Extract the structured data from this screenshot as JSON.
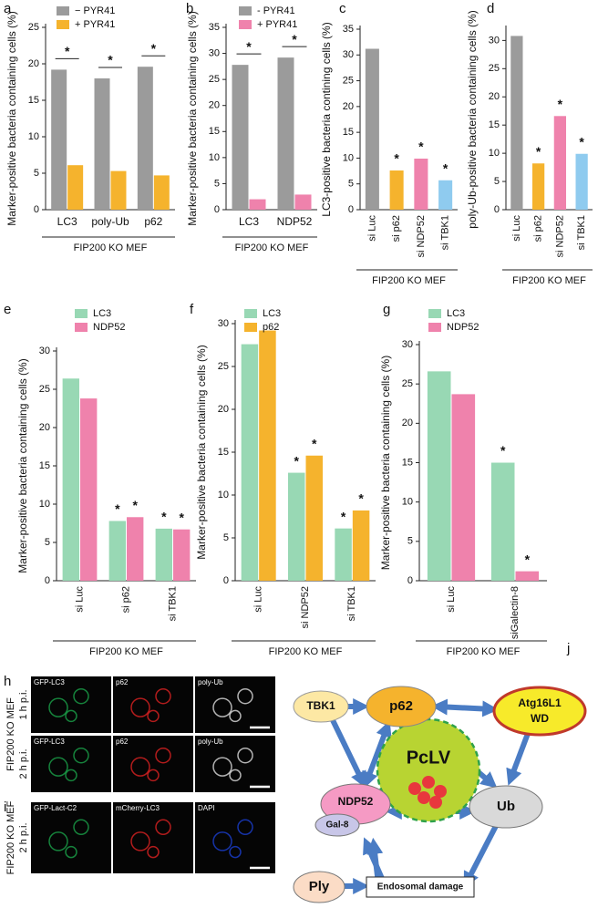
{
  "chart_data": [
    {
      "type": "bar",
      "letter": "a",
      "ylabel": "Marker-positive bacteria containing cells (%)",
      "categories": [
        "LC3",
        "poly-Ub",
        "p62"
      ],
      "series": [
        {
          "name": "− PYR41",
          "color": "#9b9b9b",
          "values": [
            19.2,
            18.0,
            19.6
          ]
        },
        {
          "name": "+ PYR41",
          "color": "#f5b32d",
          "values": [
            6.1,
            5.3,
            4.7
          ]
        }
      ],
      "comparisons": [
        "*",
        "*",
        "*"
      ],
      "ylim": [
        0,
        25
      ],
      "yticks": [
        0,
        5,
        10,
        15,
        20,
        25
      ],
      "group_label": "FIP200 KO MEF"
    },
    {
      "type": "bar",
      "letter": "b",
      "ylabel": "Marker-positive bacteria containing cells (%)",
      "categories": [
        "LC3",
        "NDP52"
      ],
      "series": [
        {
          "name": "- PYR41",
          "color": "#9b9b9b",
          "values": [
            27.8,
            29.2
          ]
        },
        {
          "name": "+ PYR41",
          "color": "#ef82ac",
          "values": [
            2.0,
            2.9
          ]
        }
      ],
      "comparisons": [
        "*",
        "*"
      ],
      "ylim": [
        0,
        35
      ],
      "yticks": [
        0,
        5,
        10,
        15,
        20,
        25,
        30,
        35
      ],
      "group_label": "FIP200 KO MEF"
    },
    {
      "type": "bar",
      "letter": "c",
      "ylabel": "LC3-positive bacteria contining cells (%)",
      "categories": [
        "si Luc",
        "si p62",
        "si NDP52",
        "si TBK1"
      ],
      "values": [
        31.2,
        7.6,
        9.9,
        5.7
      ],
      "colors": [
        "#9b9b9b",
        "#f5b32d",
        "#ef82ac",
        "#8fcbef"
      ],
      "stars": [
        null,
        "*",
        "*",
        "*"
      ],
      "ylim": [
        0,
        35
      ],
      "yticks": [
        0,
        5,
        10,
        15,
        20,
        25,
        30,
        35
      ],
      "group_label": "FIP200 KO MEF"
    },
    {
      "type": "bar",
      "letter": "d",
      "ylabel": "poly-Ub-positive bacteria containing cells (%)",
      "categories": [
        "si Luc",
        "si p62",
        "si NDP52",
        "si TBK1"
      ],
      "values": [
        30.8,
        8.2,
        16.6,
        9.9
      ],
      "colors": [
        "#9b9b9b",
        "#f5b32d",
        "#ef82ac",
        "#8fcbef"
      ],
      "stars": [
        null,
        "*",
        "*",
        "*"
      ],
      "ylim": [
        0,
        32
      ],
      "yticks": [
        0,
        5,
        10,
        15,
        20,
        25,
        30
      ],
      "group_label": "FIP200 KO MEF"
    },
    {
      "type": "bar",
      "letter": "e",
      "ylabel": "Marker-positive bacteria containing cells (%)",
      "categories": [
        "si Luc",
        "si p62",
        "si TBK1"
      ],
      "series": [
        {
          "name": "LC3",
          "color": "#98d8b4",
          "values": [
            26.4,
            7.8,
            6.8
          ],
          "stars": [
            null,
            "*",
            "*"
          ]
        },
        {
          "name": "NDP52",
          "color": "#ef82ac",
          "values": [
            23.8,
            8.3,
            6.7
          ],
          "stars": [
            null,
            "*",
            "*"
          ]
        }
      ],
      "ylim": [
        0,
        30
      ],
      "yticks": [
        0,
        5,
        10,
        15,
        20,
        25,
        30
      ],
      "group_label": "FIP200 KO MEF"
    },
    {
      "type": "bar",
      "letter": "f",
      "ylabel": "Marker-positive bacteria containing cells (%)",
      "categories": [
        "si Luc",
        "si NDP52",
        "si TBK1"
      ],
      "series": [
        {
          "name": "LC3",
          "color": "#98d8b4",
          "values": [
            27.6,
            12.6,
            6.1
          ],
          "stars": [
            null,
            "*",
            "*"
          ]
        },
        {
          "name": "p62",
          "color": "#f5b32d",
          "values": [
            29.2,
            14.6,
            8.2
          ],
          "stars": [
            null,
            "*",
            "*"
          ]
        }
      ],
      "ylim": [
        0,
        30
      ],
      "yticks": [
        0,
        5,
        10,
        15,
        20,
        25,
        30
      ],
      "group_label": "FIP200 KO MEF"
    },
    {
      "type": "bar",
      "letter": "g",
      "ylabel": "Marker-positive bacteria containing cells (%)",
      "categories": [
        "si Luc",
        "siGalectin-8"
      ],
      "series": [
        {
          "name": "LC3",
          "color": "#98d8b4",
          "values": [
            26.6,
            15.0
          ],
          "stars": [
            null,
            "*"
          ]
        },
        {
          "name": "NDP52",
          "color": "#ef82ac",
          "values": [
            23.7,
            1.2
          ],
          "stars": [
            null,
            "*"
          ]
        }
      ],
      "ylim": [
        0,
        30
      ],
      "yticks": [
        0,
        5,
        10,
        15,
        20,
        25,
        30
      ],
      "group_label": "FIP200 KO MEF"
    }
  ],
  "images": [
    {
      "letter": "h",
      "side_label": "FIP200 KO MEF",
      "rows": [
        {
          "time": "1 h p.i.",
          "channels": [
            "GFP-LC3",
            "p62",
            "poly-Ub"
          ]
        },
        {
          "time": "2 h p.i.",
          "channels": [
            "GFP-LC3",
            "p62",
            "poly-Ub"
          ]
        }
      ]
    },
    {
      "letter": "i",
      "side_label": "FIP200 KO MEF",
      "rows": [
        {
          "time": "2 h p.i.",
          "channels": [
            "GFP-Lact-C2",
            "mCherry-LC3",
            "DAPI"
          ]
        }
      ]
    }
  ],
  "diagram": {
    "letter": "j",
    "nodes": {
      "tbk1": "TBK1",
      "p62": "p62",
      "atg": [
        "Atg16L1",
        "WD"
      ],
      "pclv": "PcLV",
      "ndp52": "NDP52",
      "gal8": "Gal-8",
      "ub": "Ub",
      "ply": "Ply",
      "damage": "Endosomal damage"
    }
  }
}
